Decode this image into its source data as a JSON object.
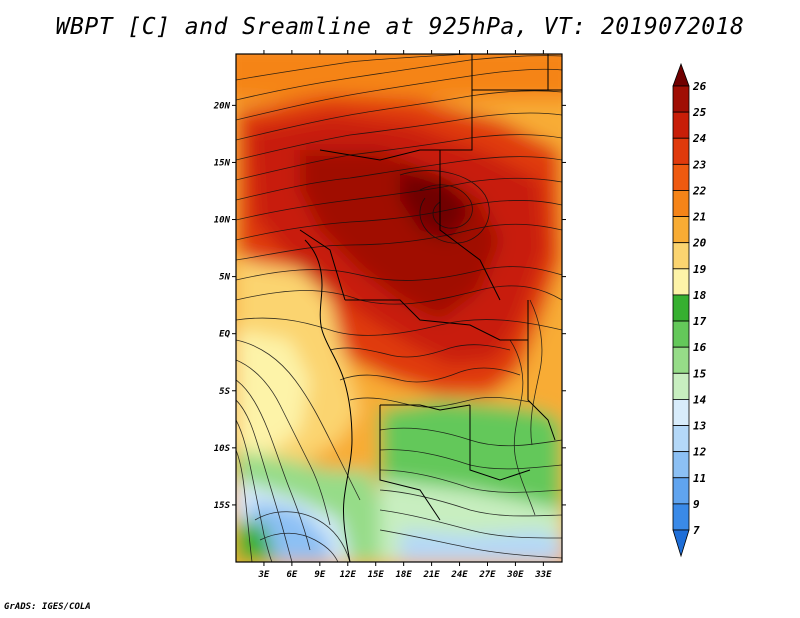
{
  "title": "WBPT [C] and Sreamline at 925hPa, VT: 2019072018",
  "credit": "GrADS: IGES/COLA",
  "map": {
    "lon_range": [
      0,
      35
    ],
    "lat_range": [
      -20,
      24.5
    ],
    "lat_ticks": [
      {
        "label": "20N",
        "value": 20
      },
      {
        "label": "15N",
        "value": 15
      },
      {
        "label": "10N",
        "value": 10
      },
      {
        "label": "5N",
        "value": 5
      },
      {
        "label": "EQ",
        "value": 0
      },
      {
        "label": "5S",
        "value": -5
      },
      {
        "label": "10S",
        "value": -10
      },
      {
        "label": "15S",
        "value": -15
      }
    ],
    "lon_ticks": [
      {
        "label": "3E",
        "value": 3
      },
      {
        "label": "6E",
        "value": 6
      },
      {
        "label": "9E",
        "value": 9
      },
      {
        "label": "12E",
        "value": 12
      },
      {
        "label": "15E",
        "value": 15
      },
      {
        "label": "18E",
        "value": 18
      },
      {
        "label": "21E",
        "value": 21
      },
      {
        "label": "24E",
        "value": 24
      },
      {
        "label": "27E",
        "value": 27
      },
      {
        "label": "30E",
        "value": 30
      },
      {
        "label": "33E",
        "value": 33
      }
    ]
  },
  "colorbar": {
    "levels": [
      "7",
      "9",
      "11",
      "12",
      "13",
      "14",
      "15",
      "16",
      "17",
      "18",
      "19",
      "20",
      "21",
      "22",
      "23",
      "24",
      "25",
      "26"
    ],
    "colors": [
      "#1e6ed8",
      "#3a8ae8",
      "#60a4ef",
      "#8cc0f4",
      "#b4d8f8",
      "#d8ecfb",
      "#c8eec0",
      "#96dc88",
      "#64c85a",
      "#36b030",
      "#fdf3a8",
      "#fbd470",
      "#f8ac34",
      "#f58418",
      "#ee5a10",
      "#e03a0c",
      "#c81e08",
      "#a00e04",
      "#700000"
    ]
  }
}
